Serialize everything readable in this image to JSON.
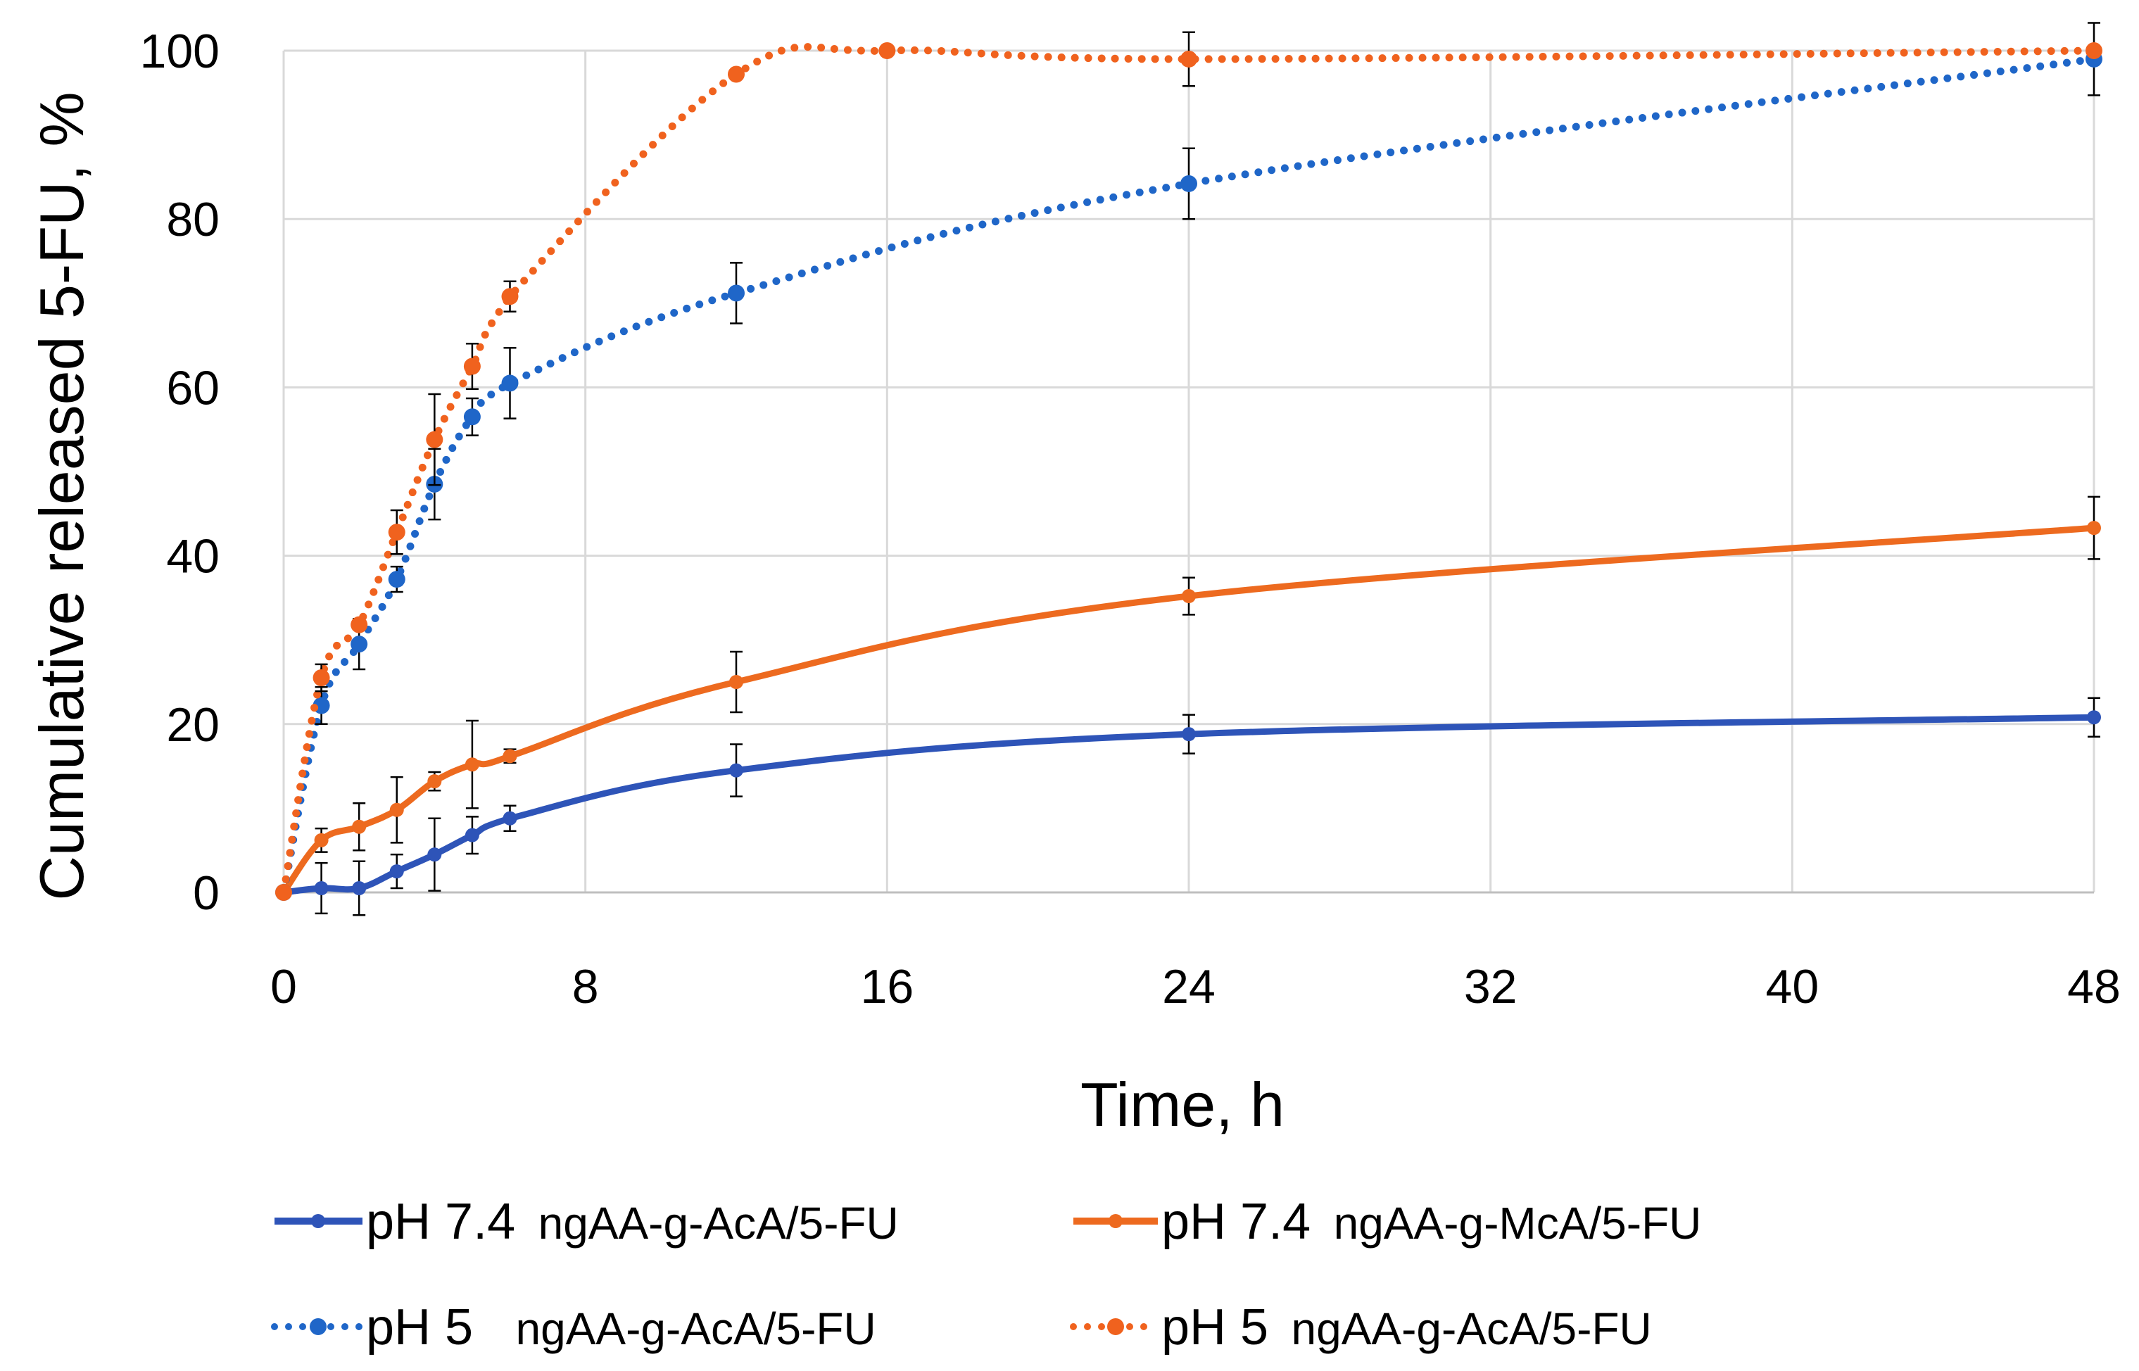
{
  "chart_data": {
    "type": "line",
    "title": "",
    "xlabel": "Time, h",
    "ylabel": "Cumulative released 5-FU, %",
    "xlim": [
      0,
      48
    ],
    "ylim": [
      0,
      100
    ],
    "xticks": [
      0,
      8,
      16,
      24,
      32,
      40,
      48
    ],
    "yticks": [
      0,
      20,
      40,
      60,
      80,
      100
    ],
    "xtick_labels": [
      "0",
      "8",
      "16",
      "24",
      "32",
      "40",
      "48"
    ],
    "ytick_labels": [
      "0",
      "20",
      "40",
      "60",
      "80",
      "100"
    ],
    "grid": true,
    "legend_position": "bottom",
    "series": [
      {
        "name": "pH 7.4  ngAA-g-AcA/5-FU",
        "legend_ph": "pH 7.4",
        "legend_sample": "ngAA-g-AcA/5-FU",
        "color": "#2E54B8",
        "line_style": "solid",
        "x": [
          0,
          1,
          2,
          3,
          4,
          5,
          6,
          12,
          24,
          48
        ],
        "y": [
          0,
          0.5,
          0.5,
          2.5,
          4.5,
          6.8,
          8.8,
          14.5,
          18.8,
          20.8
        ],
        "err": [
          0,
          3,
          3.2,
          2,
          4.3,
          2.2,
          1.5,
          3.1,
          2.3,
          2.3
        ]
      },
      {
        "name": "pH 7.4  ngAA-g-McA/5-FU",
        "legend_ph": "pH 7.4",
        "legend_sample": "ngAA-g-McA/5-FU",
        "color": "#ED6A1F",
        "line_style": "solid",
        "x": [
          0,
          1,
          2,
          3,
          4,
          5,
          6,
          12,
          24,
          48
        ],
        "y": [
          0,
          6.2,
          7.8,
          9.8,
          13.2,
          15.2,
          16.2,
          25,
          35.2,
          43.3
        ],
        "err": [
          0,
          1.4,
          2.8,
          3.9,
          1.1,
          5.2,
          0.8,
          3.6,
          2.2,
          3.7
        ]
      },
      {
        "name": "pH 5  ngAA-g-AcA/5-FU",
        "legend_ph": "pH 5",
        "legend_sample": "ngAA-g-AcA/5-FU",
        "color": "#1F66C8",
        "line_style": "dotted",
        "x": [
          0,
          1,
          2,
          3,
          4,
          5,
          6,
          12,
          24,
          48
        ],
        "y": [
          0,
          22.2,
          29.5,
          37.2,
          48.5,
          56.5,
          60.5,
          71.2,
          84.2,
          99
        ],
        "err": [
          0,
          2.2,
          3.0,
          1.5,
          4.2,
          2.2,
          4.2,
          3.6,
          4.2,
          4.3
        ]
      },
      {
        "name": "pH 5  ngAA-g-AcA/5-FU",
        "legend_ph": "pH 5",
        "legend_sample": "ngAA-g-AcA/5-FU",
        "color": "#F0621E",
        "line_style": "dotted",
        "x": [
          0,
          1,
          2,
          3,
          4,
          5,
          6,
          12,
          16,
          24,
          48
        ],
        "y": [
          0,
          25.5,
          31.8,
          42.8,
          53.8,
          62.5,
          70.8,
          97.2,
          100,
          99,
          100
        ],
        "err": [
          0,
          1.6,
          0,
          2.6,
          5.4,
          2.7,
          1.8,
          0,
          0,
          3.2,
          0
        ]
      }
    ]
  }
}
